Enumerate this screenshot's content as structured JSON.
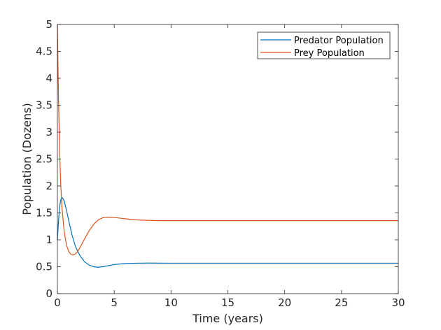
{
  "chart_data": {
    "type": "line",
    "title": "",
    "xlabel": "Time (years)",
    "ylabel": "Population (Dozens)",
    "xlim": [
      0,
      30
    ],
    "ylim": [
      0,
      5
    ],
    "xticks": [
      0,
      5,
      10,
      15,
      20,
      25,
      30
    ],
    "xtick_labels": [
      "0",
      "5",
      "10",
      "15",
      "20",
      "25",
      "30"
    ],
    "yticks": [
      0,
      0.5,
      1,
      1.5,
      2,
      2.5,
      3,
      3.5,
      4,
      4.5,
      5
    ],
    "ytick_labels": [
      "0",
      "0.5",
      "1",
      "1.5",
      "2",
      "2.5",
      "3",
      "3.5",
      "4",
      "4.5",
      "5"
    ],
    "grid": false,
    "legend_position": "top-right",
    "series": [
      {
        "name": "Predator Population",
        "color": "#0072BD",
        "x": [
          0,
          0.1,
          0.2,
          0.3,
          0.45,
          0.6,
          0.8,
          1.0,
          1.3,
          1.6,
          2.0,
          2.4,
          2.8,
          3.2,
          3.6,
          4.0,
          4.5,
          5.0,
          5.5,
          6.0,
          7.0,
          8.0,
          9.0,
          10.0,
          12.0,
          15.0,
          20.0,
          25.0,
          30.0
        ],
        "y": [
          1.0,
          1.35,
          1.62,
          1.75,
          1.78,
          1.72,
          1.55,
          1.35,
          1.08,
          0.87,
          0.7,
          0.59,
          0.53,
          0.5,
          0.49,
          0.5,
          0.52,
          0.54,
          0.55,
          0.56,
          0.565,
          0.568,
          0.567,
          0.566,
          0.566,
          0.566,
          0.566,
          0.566,
          0.566
        ]
      },
      {
        "name": "Prey Population",
        "color": "#D95319",
        "x": [
          0,
          0.05,
          0.1,
          0.2,
          0.3,
          0.4,
          0.6,
          0.8,
          1.0,
          1.2,
          1.4,
          1.6,
          1.8,
          2.0,
          2.4,
          2.8,
          3.2,
          3.6,
          4.0,
          4.4,
          4.8,
          5.2,
          5.6,
          6.0,
          7.0,
          8.0,
          9.0,
          10.0,
          12.0,
          15.0,
          20.0,
          25.0,
          30.0
        ],
        "y": [
          5.0,
          4.3,
          3.6,
          2.6,
          2.0,
          1.6,
          1.15,
          0.9,
          0.78,
          0.73,
          0.72,
          0.74,
          0.79,
          0.86,
          1.02,
          1.17,
          1.29,
          1.37,
          1.41,
          1.42,
          1.415,
          1.41,
          1.4,
          1.39,
          1.37,
          1.36,
          1.355,
          1.355,
          1.356,
          1.356,
          1.356,
          1.356,
          1.356
        ]
      }
    ]
  }
}
